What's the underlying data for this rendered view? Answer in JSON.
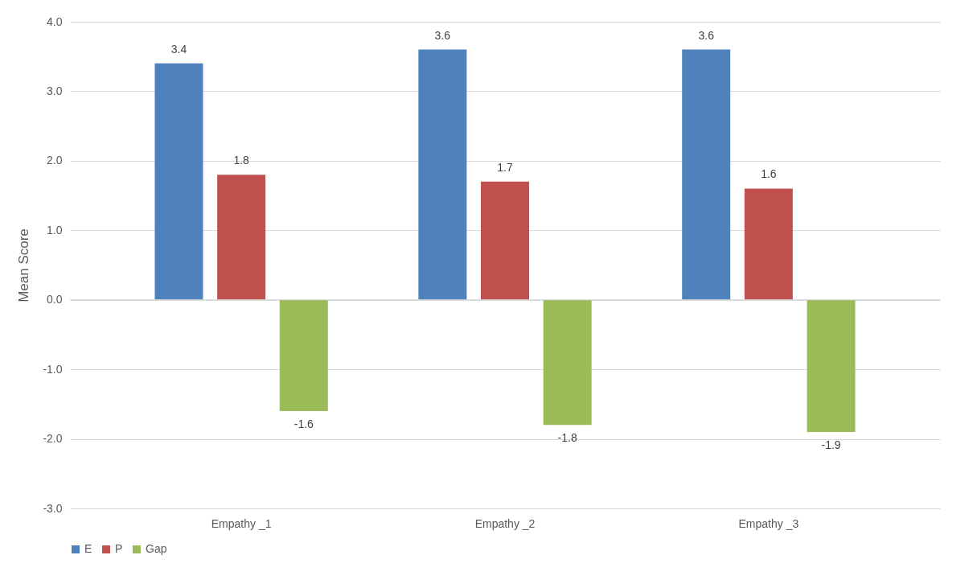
{
  "chart_data": {
    "type": "bar",
    "ylabel": "Mean Score",
    "categories": [
      "Empathy _1",
      "Empathy _2",
      "Empathy _3"
    ],
    "series": [
      {
        "name": "E",
        "color": "#4f81bd",
        "values": [
          3.4,
          3.6,
          3.6
        ]
      },
      {
        "name": "P",
        "color": "#c0504d",
        "values": [
          1.8,
          1.7,
          1.6
        ]
      },
      {
        "name": "Gap",
        "color": "#9bbb59",
        "values": [
          -1.6,
          -1.8,
          -1.9
        ]
      }
    ],
    "ylim": [
      -3,
      4
    ],
    "yticks": [
      {
        "value": -3,
        "label": "-3.0"
      },
      {
        "value": -2,
        "label": "-2.0"
      },
      {
        "value": -1,
        "label": "-1.0"
      },
      {
        "value": 0,
        "label": "0.0"
      },
      {
        "value": 1,
        "label": "1.0"
      },
      {
        "value": 2,
        "label": "2.0"
      },
      {
        "value": 3,
        "label": "3.0"
      },
      {
        "value": 4,
        "label": "4.0"
      }
    ],
    "grid": "y",
    "legend": "bottom",
    "data_labels": true
  }
}
